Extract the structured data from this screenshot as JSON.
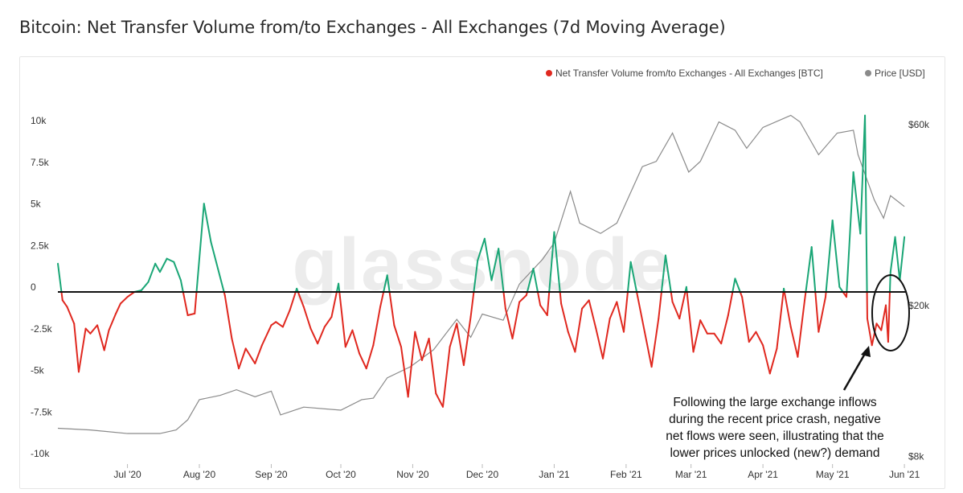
{
  "title": "Bitcoin: Net Transfer Volume from/to Exchanges - All Exchanges (7d Moving Average)",
  "watermark": "glassnode",
  "annotation": "Following the large exchange inflows during the recent price crash, negative net flows were seen, illustrating that the lower prices unlocked (new?) demand",
  "annotation_lines": [
    "Following the large exchange inflows",
    "during the recent price crash, negative",
    "net flows were seen, illustrating that the",
    "lower prices unlocked (new?) demand"
  ],
  "colors": {
    "positive": "#1aa676",
    "negative": "#e0281f",
    "price": "#8a8a8a",
    "zero_line": "#111111",
    "watermark": "#ececec"
  },
  "chart_data": {
    "type": "line",
    "x_tick_labels": [
      "Jul '20",
      "Aug '20",
      "Sep '20",
      "Oct '20",
      "Nov '20",
      "Dec '20",
      "Jan '21",
      "Feb '21",
      "Mar '21",
      "Apr '21",
      "May '21",
      "Jun '21"
    ],
    "x_tick_dates": [
      "2020-07-01",
      "2020-08-01",
      "2020-09-01",
      "2020-10-01",
      "2020-11-01",
      "2020-12-01",
      "2021-01-01",
      "2021-02-01",
      "2021-03-01",
      "2021-04-01",
      "2021-05-01",
      "2021-06-01"
    ],
    "xlim": [
      "2020-06-01",
      "2021-06-02"
    ],
    "y_left": {
      "ticks": [
        10000,
        7500,
        5000,
        2500,
        0,
        -2500,
        -5000,
        -7500,
        -10000
      ],
      "tick_labels": [
        "10k",
        "7.5k",
        "5k",
        "2.5k",
        "0",
        "-2.5k",
        "-5k",
        "-7.5k",
        "-10k"
      ],
      "range": [
        -10000,
        10500
      ]
    },
    "y_right": {
      "scale": "log",
      "ticks": [
        60000,
        20000,
        8000
      ],
      "tick_labels": [
        "$60k",
        "$20k",
        "$8k"
      ]
    },
    "legend_position": "top-right",
    "series": [
      {
        "name": "Net Transfer Volume from/to Exchanges - All Exchanges [BTC]",
        "axis": "left",
        "color_rule": "green above zero, red below zero",
        "x": [
          "2020-06-01",
          "2020-06-03",
          "2020-06-05",
          "2020-06-08",
          "2020-06-10",
          "2020-06-13",
          "2020-06-15",
          "2020-06-18",
          "2020-06-21",
          "2020-06-23",
          "2020-06-26",
          "2020-06-28",
          "2020-07-01",
          "2020-07-04",
          "2020-07-07",
          "2020-07-10",
          "2020-07-13",
          "2020-07-15",
          "2020-07-18",
          "2020-07-21",
          "2020-07-24",
          "2020-07-27",
          "2020-07-30",
          "2020-08-03",
          "2020-08-06",
          "2020-08-09",
          "2020-08-12",
          "2020-08-15",
          "2020-08-18",
          "2020-08-21",
          "2020-08-25",
          "2020-08-28",
          "2020-09-01",
          "2020-09-03",
          "2020-09-06",
          "2020-09-09",
          "2020-09-12",
          "2020-09-15",
          "2020-09-18",
          "2020-09-21",
          "2020-09-24",
          "2020-09-27",
          "2020-09-30",
          "2020-10-03",
          "2020-10-06",
          "2020-10-09",
          "2020-10-12",
          "2020-10-15",
          "2020-10-18",
          "2020-10-21",
          "2020-10-24",
          "2020-10-27",
          "2020-10-30",
          "2020-11-02",
          "2020-11-05",
          "2020-11-08",
          "2020-11-11",
          "2020-11-14",
          "2020-11-17",
          "2020-11-20",
          "2020-11-23",
          "2020-11-26",
          "2020-11-29",
          "2020-12-02",
          "2020-12-05",
          "2020-12-08",
          "2020-12-11",
          "2020-12-14",
          "2020-12-17",
          "2020-12-20",
          "2020-12-23",
          "2020-12-26",
          "2020-12-29",
          "2021-01-01",
          "2021-01-04",
          "2021-01-07",
          "2021-01-10",
          "2021-01-13",
          "2021-01-16",
          "2021-01-19",
          "2021-01-22",
          "2021-01-25",
          "2021-01-28",
          "2021-01-31",
          "2021-02-03",
          "2021-02-06",
          "2021-02-09",
          "2021-02-12",
          "2021-02-15",
          "2021-02-18",
          "2021-02-21",
          "2021-02-24",
          "2021-02-27",
          "2021-03-02",
          "2021-03-05",
          "2021-03-08",
          "2021-03-11",
          "2021-03-14",
          "2021-03-17",
          "2021-03-20",
          "2021-03-23",
          "2021-03-26",
          "2021-03-29",
          "2021-04-01",
          "2021-04-04",
          "2021-04-07",
          "2021-04-10",
          "2021-04-13",
          "2021-04-16",
          "2021-04-19",
          "2021-04-22",
          "2021-04-25",
          "2021-04-28",
          "2021-05-01",
          "2021-05-04",
          "2021-05-07",
          "2021-05-10",
          "2021-05-13",
          "2021-05-16",
          "2021-05-18",
          "2021-05-20",
          "2021-05-22",
          "2021-05-24",
          "2021-05-26",
          "2021-05-28",
          "2021-05-30",
          "2021-06-01"
        ],
        "values": [
          1700,
          -500,
          -900,
          -1900,
          -4800,
          -2200,
          -2500,
          -2000,
          -3500,
          -2300,
          -1300,
          -700,
          -300,
          0,
          100,
          600,
          1700,
          1200,
          2000,
          1800,
          700,
          -1400,
          -1300,
          5300,
          3000,
          1400,
          -200,
          -2800,
          -4600,
          -3400,
          -4300,
          -3200,
          -2000,
          -1800,
          -2100,
          -1100,
          200,
          -900,
          -2200,
          -3100,
          -2100,
          -1500,
          500,
          -3300,
          -2300,
          -3700,
          -4600,
          -3200,
          -900,
          1000,
          -2000,
          -3300,
          -6300,
          -2400,
          -4100,
          -2800,
          -6100,
          -6900,
          -3300,
          -1900,
          -4400,
          -1500,
          1900,
          3200,
          700,
          2600,
          -1000,
          -2800,
          -600,
          -200,
          1400,
          -800,
          -1400,
          3600,
          -700,
          -2400,
          -3600,
          -1000,
          -500,
          -2200,
          -4000,
          -1600,
          -600,
          -2400,
          1800,
          -300,
          -2400,
          -4500,
          -1600,
          2200,
          -600,
          -1600,
          300,
          -3600,
          -1700,
          -2500,
          -2500,
          -3100,
          -1400,
          800,
          -300,
          -3000,
          -2400,
          -3200,
          -4900,
          -3400,
          200,
          -2100,
          -3900,
          -500,
          2700,
          -2400,
          -300,
          4300,
          300,
          -300,
          7200,
          3500,
          -1600,
          -3200,
          -1900,
          -2300,
          -800,
          1200,
          3300,
          700,
          3300
        ],
        "extra_points": [
          {
            "x": "2021-05-15",
            "y": 10600
          },
          {
            "x": "2021-05-25",
            "y": -3000
          }
        ]
      },
      {
        "name": "Price [USD]",
        "axis": "right",
        "x": [
          "2020-06-01",
          "2020-06-15",
          "2020-07-01",
          "2020-07-15",
          "2020-07-22",
          "2020-07-27",
          "2020-08-01",
          "2020-08-10",
          "2020-08-17",
          "2020-08-25",
          "2020-09-01",
          "2020-09-05",
          "2020-09-15",
          "2020-10-01",
          "2020-10-10",
          "2020-10-15",
          "2020-10-21",
          "2020-10-31",
          "2020-11-10",
          "2020-11-20",
          "2020-11-26",
          "2020-12-01",
          "2020-12-10",
          "2020-12-17",
          "2020-12-27",
          "2021-01-01",
          "2021-01-08",
          "2021-01-12",
          "2021-01-21",
          "2021-01-28",
          "2021-02-08",
          "2021-02-14",
          "2021-02-21",
          "2021-02-28",
          "2021-03-05",
          "2021-03-13",
          "2021-03-20",
          "2021-03-25",
          "2021-04-01",
          "2021-04-13",
          "2021-04-17",
          "2021-04-25",
          "2021-05-03",
          "2021-05-10",
          "2021-05-12",
          "2021-05-19",
          "2021-05-23",
          "2021-05-26",
          "2021-06-01"
        ],
        "values": [
          9500,
          9400,
          9200,
          9200,
          9400,
          10000,
          11300,
          11600,
          12000,
          11500,
          11900,
          10300,
          10800,
          10600,
          11300,
          11400,
          12900,
          13800,
          15300,
          18400,
          16500,
          19000,
          18300,
          22800,
          26500,
          29300,
          40000,
          33000,
          31000,
          33000,
          46500,
          48000,
          57000,
          45000,
          48000,
          61000,
          58000,
          52000,
          59000,
          63500,
          61000,
          50000,
          57000,
          58000,
          50000,
          38000,
          34000,
          39000,
          36500
        ]
      }
    ]
  }
}
